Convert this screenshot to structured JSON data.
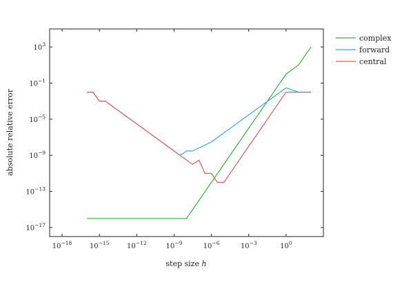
{
  "chart_data": {
    "type": "line",
    "xlabel": "step size h",
    "ylabel": "absolute relative error",
    "x_scale": "log10",
    "y_scale": "log10",
    "xlim": [
      1e-19,
      1000.0
    ],
    "ylim": [
      1e-18,
      100000.0
    ],
    "x_ticks": [
      1e-18,
      1e-15,
      1e-12,
      1e-09,
      1e-06,
      0.001,
      1.0
    ],
    "x_tick_labels": [
      "10^-18",
      "10^-15",
      "10^-12",
      "10^-9",
      "10^-6",
      "10^-3",
      "10^0"
    ],
    "y_ticks": [
      1000.0,
      0.1,
      1e-05,
      1e-09,
      1e-13,
      1e-17
    ],
    "y_tick_labels": [
      "10^3",
      "10^-1",
      "10^-5",
      "10^-9",
      "10^-13",
      "10^-17"
    ],
    "legend_position": "outside-right-top",
    "series": [
      {
        "name": "complex",
        "color": "#3cae3c",
        "x": [
          1e-16,
          1e-14,
          1e-12,
          1e-10,
          1e-08,
          1e-06,
          0.0001,
          0.01,
          1.0,
          10.0,
          100.0
        ],
        "y": [
          1e-16,
          1e-16,
          1e-16,
          1e-16,
          1e-16,
          1e-12,
          1e-08,
          0.0001,
          1.0,
          10.0,
          1000.0
        ]
      },
      {
        "name": "forward",
        "color": "#35a9d3",
        "x": [
          1e-16,
          3e-16,
          1e-15,
          3e-15,
          1e-14,
          3e-14,
          1e-13,
          3e-13,
          1e-12,
          3e-12,
          1e-11,
          3e-11,
          1e-10,
          3e-10,
          1e-09,
          3e-09,
          1e-08,
          3e-08,
          1e-06,
          0.0001,
          0.01,
          1.0,
          10.0,
          100.0
        ],
        "y": [
          0.01,
          0.01,
          0.001,
          0.001,
          0.0003,
          0.0001,
          3e-05,
          1e-05,
          3e-06,
          1e-06,
          3e-07,
          1e-07,
          3e-08,
          1e-08,
          3e-09,
          1e-09,
          3e-09,
          3e-09,
          3e-08,
          3e-06,
          0.0003,
          0.03,
          0.01,
          0.01
        ]
      },
      {
        "name": "central",
        "color": "#e05a5a",
        "x": [
          1e-16,
          3e-16,
          1e-15,
          3e-15,
          1e-14,
          3e-14,
          1e-13,
          3e-13,
          1e-12,
          3e-12,
          1e-11,
          3e-11,
          1e-10,
          3e-10,
          1e-09,
          3e-09,
          1e-08,
          3e-08,
          1e-07,
          3e-07,
          1e-06,
          3e-06,
          1e-05,
          0.0001,
          0.001,
          0.01,
          0.1,
          1.0,
          10.0,
          100.0
        ],
        "y": [
          0.01,
          0.01,
          0.001,
          0.001,
          0.0003,
          0.0001,
          3e-05,
          1e-05,
          3e-06,
          1e-06,
          3e-07,
          1e-07,
          3e-08,
          1e-08,
          3e-09,
          1e-09,
          3e-10,
          1e-10,
          3e-10,
          1e-11,
          1e-11,
          1e-12,
          1e-12,
          1e-10,
          1e-08,
          1e-06,
          0.0001,
          0.01,
          0.01,
          0.01
        ]
      }
    ]
  }
}
